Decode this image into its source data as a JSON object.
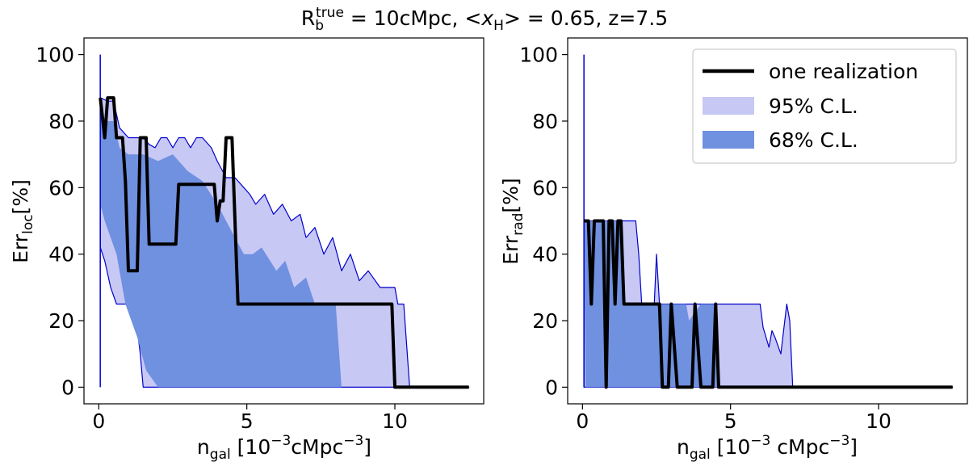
{
  "figure": {
    "title": {
      "prefix": "R",
      "sub": "b",
      "sup": "true",
      "mid": " = 10cMpc, <",
      "x": "x",
      "xsub": "H",
      "rest": "> = 0.65, z=7.5"
    }
  },
  "colors": {
    "realization": "#000000",
    "ci95_fill": "#c8c8f5",
    "ci68_fill": "#7090e0",
    "edge": "#0000cc"
  },
  "chart_data": [
    {
      "type": "area",
      "panel": "left",
      "ylabel": {
        "main": "Err",
        "sub": "loc",
        "unit": "[%]"
      },
      "xlabel": {
        "main": "n",
        "sub": "gal",
        "unit": " [10",
        "exp": "−3",
        "unit2": "cMpc",
        "exp2": "−3",
        "close": "]"
      },
      "xlim": [
        -0.5,
        13.0
      ],
      "ylim": [
        -5,
        105
      ],
      "xticks": [
        "0",
        "5",
        "10"
      ],
      "xtick_values": [
        0,
        5,
        10
      ],
      "yticks": [
        "0",
        "20",
        "40",
        "60",
        "80",
        "100"
      ],
      "ytick_values": [
        0,
        20,
        40,
        60,
        80,
        100
      ],
      "spike": {
        "x": 0.05,
        "y0": 0,
        "y1": 100
      },
      "ci95_upper": [
        [
          0.05,
          87
        ],
        [
          0.3,
          86
        ],
        [
          0.5,
          86
        ],
        [
          0.7,
          78
        ],
        [
          1.0,
          75
        ],
        [
          1.5,
          75
        ],
        [
          1.7,
          73
        ],
        [
          1.9,
          72
        ],
        [
          2.1,
          75
        ],
        [
          2.3,
          75
        ],
        [
          2.5,
          72
        ],
        [
          2.7,
          75
        ],
        [
          2.9,
          75
        ],
        [
          3.1,
          72
        ],
        [
          3.3,
          75
        ],
        [
          3.5,
          75
        ],
        [
          3.8,
          72
        ],
        [
          4.0,
          68
        ],
        [
          4.3,
          63
        ],
        [
          4.6,
          63
        ],
        [
          4.9,
          60
        ],
        [
          5.1,
          58
        ],
        [
          5.3,
          55
        ],
        [
          5.6,
          58
        ],
        [
          5.9,
          52
        ],
        [
          6.2,
          55
        ],
        [
          6.5,
          50
        ],
        [
          6.8,
          52
        ],
        [
          7.0,
          45
        ],
        [
          7.3,
          48
        ],
        [
          7.6,
          40
        ],
        [
          7.9,
          45
        ],
        [
          8.2,
          35
        ],
        [
          8.5,
          40
        ],
        [
          8.8,
          32
        ],
        [
          9.1,
          35
        ],
        [
          9.5,
          30
        ],
        [
          10.0,
          30
        ],
        [
          10.1,
          25
        ],
        [
          10.3,
          25
        ],
        [
          10.5,
          0
        ],
        [
          12.5,
          0
        ]
      ],
      "ci95_lower": [
        [
          0.05,
          42
        ],
        [
          0.2,
          38
        ],
        [
          0.4,
          30
        ],
        [
          0.6,
          25
        ],
        [
          1.2,
          25
        ],
        [
          1.4,
          10
        ],
        [
          1.5,
          0
        ],
        [
          12.5,
          0
        ]
      ],
      "ci68_upper": [
        [
          0.05,
          82
        ],
        [
          0.3,
          80
        ],
        [
          0.5,
          80
        ],
        [
          0.7,
          72
        ],
        [
          1.0,
          70
        ],
        [
          1.5,
          70
        ],
        [
          2.0,
          68
        ],
        [
          2.5,
          70
        ],
        [
          3.0,
          65
        ],
        [
          3.5,
          62
        ],
        [
          4.0,
          55
        ],
        [
          4.3,
          50
        ],
        [
          4.6,
          45
        ],
        [
          4.9,
          40
        ],
        [
          5.2,
          40
        ],
        [
          5.5,
          42
        ],
        [
          6.0,
          35
        ],
        [
          6.3,
          38
        ],
        [
          6.6,
          30
        ],
        [
          7.0,
          33
        ],
        [
          7.3,
          25
        ],
        [
          7.6,
          25
        ],
        [
          8.0,
          25
        ],
        [
          8.2,
          0
        ]
      ],
      "ci68_lower": [
        [
          0.05,
          55
        ],
        [
          0.2,
          50
        ],
        [
          0.4,
          45
        ],
        [
          0.6,
          40
        ],
        [
          0.9,
          25
        ],
        [
          1.3,
          15
        ],
        [
          1.6,
          5
        ],
        [
          2.0,
          0
        ],
        [
          8.2,
          0
        ]
      ],
      "realization": [
        [
          0.05,
          87
        ],
        [
          0.2,
          75
        ],
        [
          0.3,
          87
        ],
        [
          0.5,
          87
        ],
        [
          0.6,
          75
        ],
        [
          0.8,
          75
        ],
        [
          0.9,
          62
        ],
        [
          1.0,
          35
        ],
        [
          1.3,
          35
        ],
        [
          1.4,
          75
        ],
        [
          1.6,
          75
        ],
        [
          1.7,
          43
        ],
        [
          2.6,
          43
        ],
        [
          2.7,
          61
        ],
        [
          3.9,
          61
        ],
        [
          4.0,
          50
        ],
        [
          4.1,
          56
        ],
        [
          4.2,
          56
        ],
        [
          4.3,
          75
        ],
        [
          4.5,
          75
        ],
        [
          4.6,
          50
        ],
        [
          4.7,
          25
        ],
        [
          9.9,
          25
        ],
        [
          10.0,
          0
        ],
        [
          12.5,
          0
        ]
      ]
    },
    {
      "type": "area",
      "panel": "right",
      "ylabel": {
        "main": "Err",
        "sub": "rad",
        "unit": "[%]"
      },
      "xlabel": {
        "main": "n",
        "sub": "gal",
        "unit": " [10",
        "exp": "−3",
        "unit2": " cMpc",
        "exp2": "−3",
        "close": "]"
      },
      "xlim": [
        -0.5,
        13.0
      ],
      "ylim": [
        -5,
        105
      ],
      "xticks": [
        "0",
        "5",
        "10"
      ],
      "xtick_values": [
        0,
        5,
        10
      ],
      "yticks": [
        "0",
        "20",
        "40",
        "60",
        "80",
        "100"
      ],
      "ytick_values": [
        0,
        20,
        40,
        60,
        80,
        100
      ],
      "spike": {
        "x": 0.05,
        "y0": 0,
        "y1": 100
      },
      "ci95_upper": [
        [
          0.05,
          50
        ],
        [
          1.8,
          50
        ],
        [
          1.9,
          40
        ],
        [
          2.0,
          25
        ],
        [
          2.3,
          25
        ],
        [
          2.4,
          20
        ],
        [
          2.5,
          40
        ],
        [
          2.6,
          25
        ],
        [
          6.0,
          25
        ],
        [
          6.1,
          18
        ],
        [
          6.3,
          12
        ],
        [
          6.4,
          17
        ],
        [
          6.5,
          15
        ],
        [
          6.7,
          10
        ],
        [
          6.9,
          25
        ],
        [
          7.0,
          20
        ],
        [
          7.1,
          0
        ],
        [
          12.5,
          0
        ]
      ],
      "ci95_lower": [
        [
          0.05,
          50
        ],
        [
          0.05,
          0
        ],
        [
          12.5,
          0
        ]
      ],
      "ci68_upper": [
        [
          0.05,
          50
        ],
        [
          1.3,
          50
        ],
        [
          1.4,
          25
        ],
        [
          3.5,
          25
        ],
        [
          3.6,
          20
        ],
        [
          4.0,
          25
        ],
        [
          4.5,
          25
        ],
        [
          4.6,
          0
        ]
      ],
      "ci68_lower": [
        [
          0.05,
          50
        ],
        [
          0.1,
          0
        ],
        [
          4.6,
          0
        ]
      ],
      "realization": [
        [
          0.05,
          50
        ],
        [
          0.2,
          50
        ],
        [
          0.3,
          25
        ],
        [
          0.4,
          50
        ],
        [
          0.7,
          50
        ],
        [
          0.8,
          0
        ],
        [
          0.9,
          50
        ],
        [
          1.0,
          50
        ],
        [
          1.1,
          25
        ],
        [
          1.2,
          50
        ],
        [
          1.3,
          50
        ],
        [
          1.4,
          25
        ],
        [
          2.6,
          25
        ],
        [
          2.7,
          0
        ],
        [
          2.9,
          0
        ],
        [
          3.0,
          25
        ],
        [
          3.2,
          0
        ],
        [
          3.7,
          0
        ],
        [
          3.8,
          25
        ],
        [
          4.0,
          0
        ],
        [
          4.4,
          0
        ],
        [
          4.5,
          25
        ],
        [
          4.6,
          0
        ],
        [
          12.5,
          0
        ]
      ]
    }
  ],
  "legend": {
    "location": "upper right of right panel",
    "items": [
      {
        "label": "one realization"
      },
      {
        "label": "95% C.L."
      },
      {
        "label": "68% C.L."
      }
    ]
  }
}
